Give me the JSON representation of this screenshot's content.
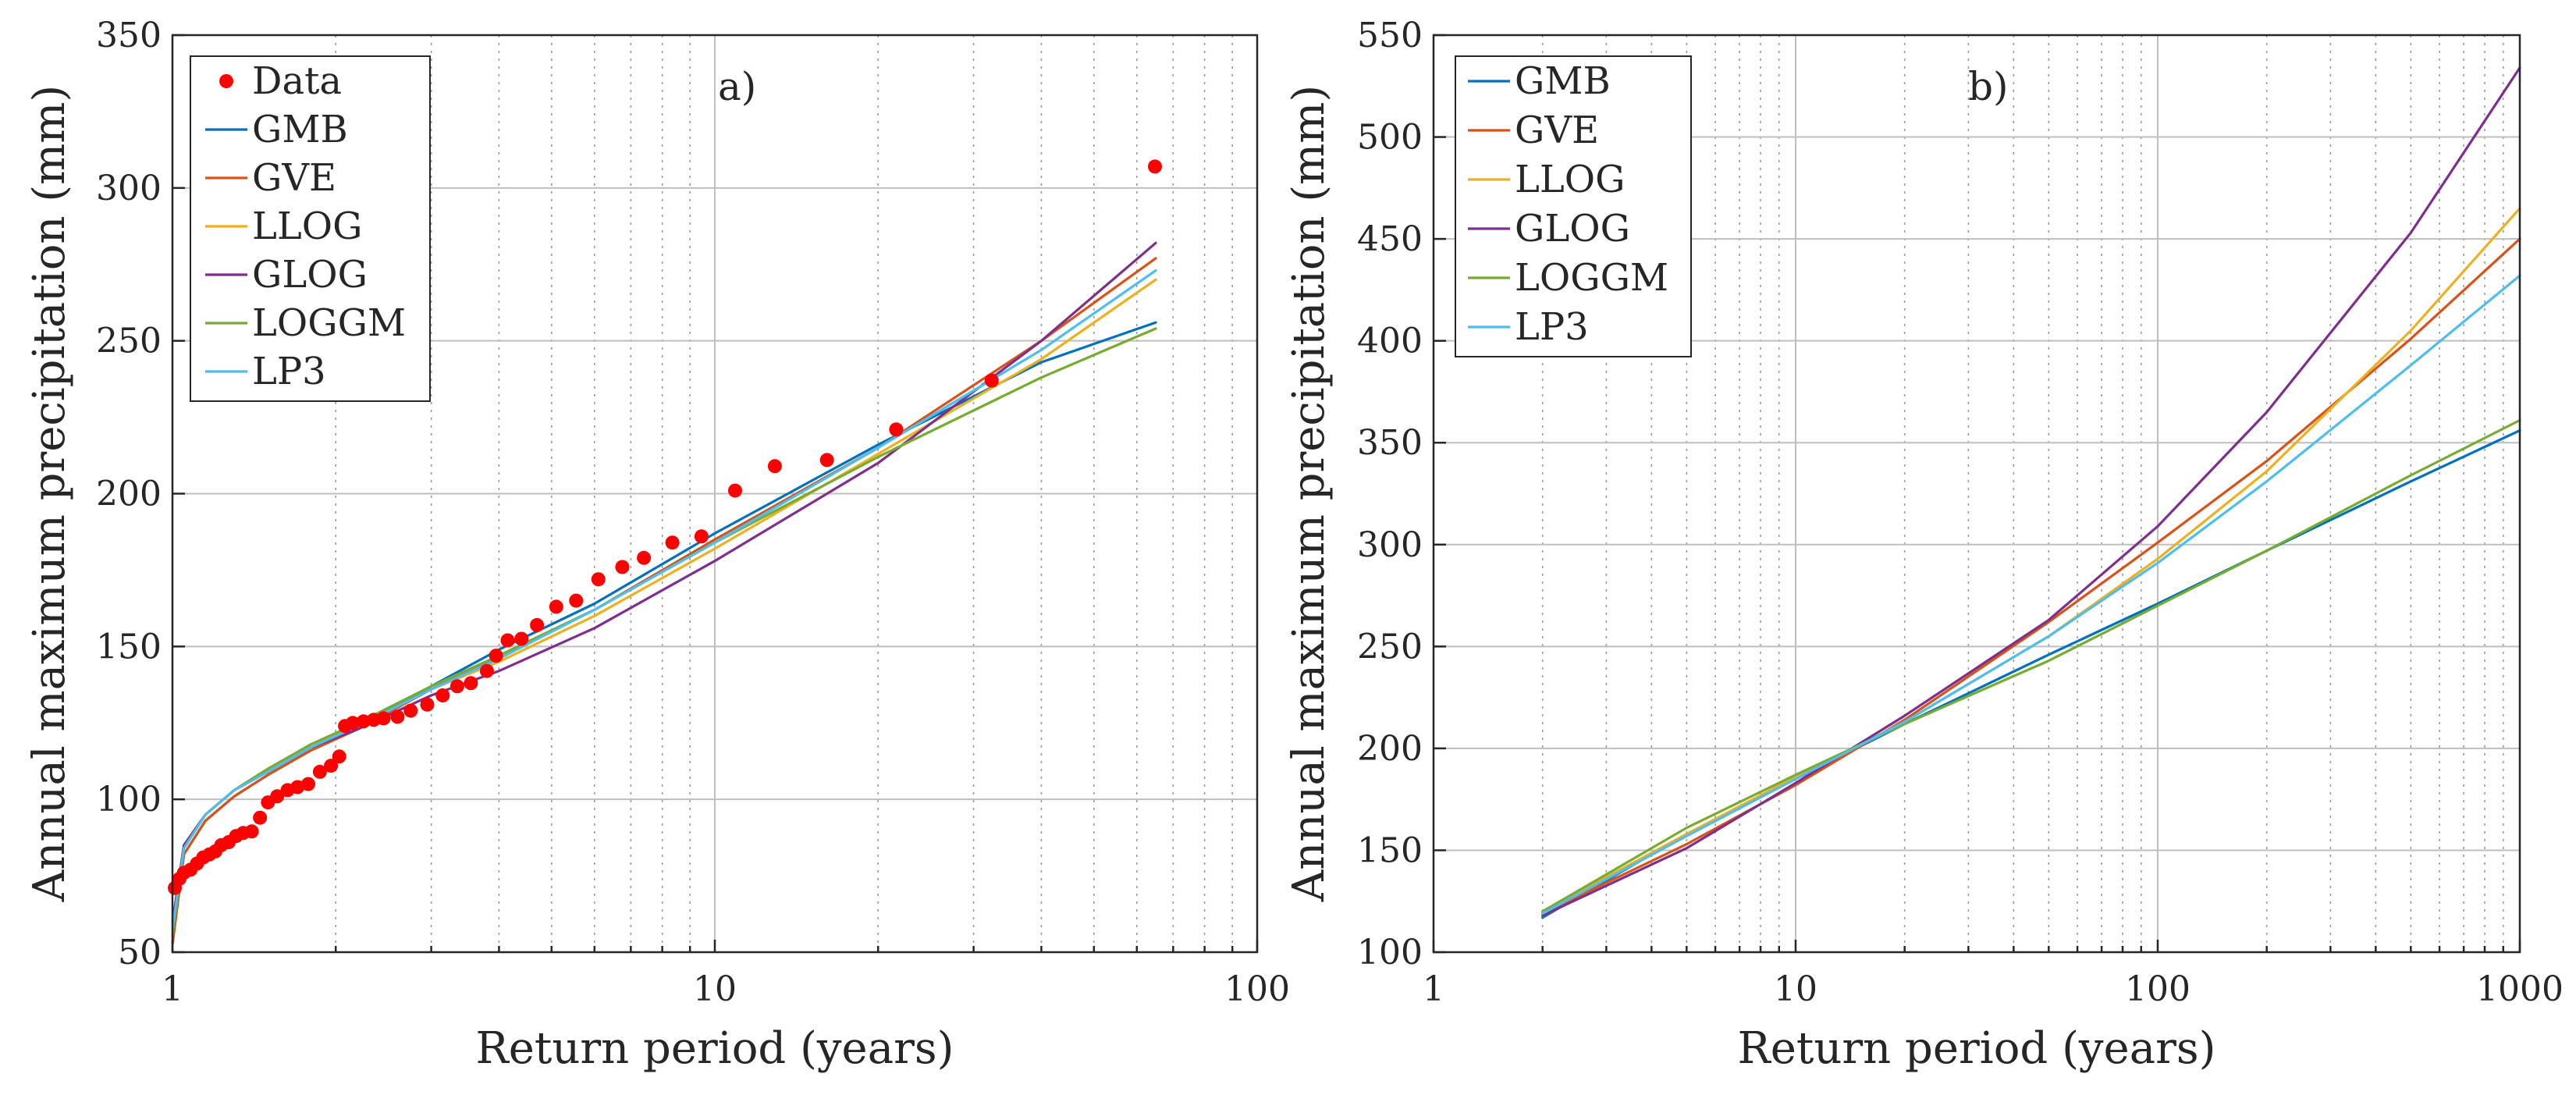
{
  "colors": {
    "GMB": "#0072BD",
    "GVE": "#D95319",
    "LLOG": "#EDB120",
    "GLOG": "#7E2F8E",
    "LOGGM": "#77AC30",
    "LP3": "#4DBEEE",
    "Data": "#FF0000"
  },
  "chart_data": [
    {
      "type": "line",
      "panel_label": "a)",
      "xlabel": "Return period (years)",
      "ylabel": "Annual maximum precipitation (mm)",
      "xscale": "log",
      "xlim": [
        1,
        100
      ],
      "ylim": [
        50,
        350
      ],
      "xticks": [
        1,
        10,
        100
      ],
      "xtick_labels": [
        "1",
        "10",
        "100"
      ],
      "yticks": [
        50,
        100,
        150,
        200,
        250,
        300,
        350
      ],
      "ytick_labels": [
        "50",
        "100",
        "150",
        "200",
        "250",
        "300",
        "350"
      ],
      "grid": "major and minor (x)",
      "legend_position": "top-left",
      "legend": [
        "Data",
        "GMB",
        "GVE",
        "LLOG",
        "GLOG",
        "LOGGM",
        "LP3"
      ],
      "scatter": {
        "name": "Data",
        "points": [
          [
            1.01,
            71
          ],
          [
            1.03,
            74
          ],
          [
            1.05,
            76
          ],
          [
            1.08,
            77
          ],
          [
            1.11,
            79
          ],
          [
            1.14,
            81
          ],
          [
            1.17,
            82
          ],
          [
            1.2,
            83
          ],
          [
            1.23,
            85
          ],
          [
            1.27,
            86
          ],
          [
            1.31,
            88
          ],
          [
            1.35,
            89
          ],
          [
            1.4,
            89.5
          ],
          [
            1.45,
            94
          ],
          [
            1.5,
            99
          ],
          [
            1.56,
            101
          ],
          [
            1.63,
            103
          ],
          [
            1.7,
            104
          ],
          [
            1.78,
            105
          ],
          [
            1.87,
            109
          ],
          [
            1.96,
            111
          ],
          [
            2.03,
            114
          ],
          [
            2.08,
            124
          ],
          [
            2.15,
            125
          ],
          [
            2.25,
            125.5
          ],
          [
            2.35,
            126
          ],
          [
            2.45,
            126.5
          ],
          [
            2.6,
            127
          ],
          [
            2.75,
            129
          ],
          [
            2.95,
            131
          ],
          [
            3.15,
            134
          ],
          [
            3.35,
            137
          ],
          [
            3.55,
            138
          ],
          [
            3.8,
            142
          ],
          [
            3.95,
            147
          ],
          [
            4.15,
            152
          ],
          [
            4.4,
            152.5
          ],
          [
            4.7,
            157
          ],
          [
            5.1,
            163
          ],
          [
            5.55,
            165
          ],
          [
            6.1,
            172
          ],
          [
            6.75,
            176
          ],
          [
            7.4,
            179
          ],
          [
            8.35,
            184
          ],
          [
            9.45,
            186
          ],
          [
            10.9,
            201
          ],
          [
            12.9,
            209
          ],
          [
            16.1,
            211
          ],
          [
            21.6,
            221
          ],
          [
            32.4,
            237
          ],
          [
            64.8,
            307
          ]
        ]
      },
      "series": [
        {
          "name": "GMB",
          "x": [
            1.001,
            1.05,
            1.15,
            1.3,
            1.5,
            1.8,
            2.2,
            3,
            4,
            6,
            10,
            20,
            40,
            65
          ],
          "y": [
            55,
            82,
            93,
            101,
            108,
            116,
            124,
            137,
            149,
            164,
            187,
            216,
            243,
            256
          ]
        },
        {
          "name": "GVE",
          "x": [
            1.001,
            1.05,
            1.15,
            1.3,
            1.5,
            1.8,
            2.2,
            3,
            4,
            6,
            10,
            20,
            40,
            65
          ],
          "y": [
            53,
            82,
            93,
            101,
            108,
            116,
            123,
            136,
            147,
            162,
            185,
            215,
            250,
            277
          ]
        },
        {
          "name": "LLOG",
          "x": [
            1.001,
            1.05,
            1.15,
            1.3,
            1.5,
            1.8,
            2.2,
            3,
            4,
            6,
            10,
            20,
            40,
            65
          ],
          "y": [
            60,
            85,
            95,
            103,
            110,
            118,
            124,
            136,
            145,
            160,
            182,
            213,
            244,
            270
          ]
        },
        {
          "name": "GLOG",
          "x": [
            1.001,
            1.05,
            1.15,
            1.3,
            1.5,
            1.8,
            2.2,
            3,
            4,
            6,
            10,
            20,
            40,
            65
          ],
          "y": [
            60,
            85,
            95,
            103,
            109,
            117,
            123,
            134,
            142,
            156,
            178,
            210,
            250,
            282
          ]
        },
        {
          "name": "LOGGM",
          "x": [
            1.001,
            1.05,
            1.15,
            1.3,
            1.5,
            1.8,
            2.2,
            3,
            4,
            6,
            10,
            20,
            40,
            65
          ],
          "y": [
            56,
            84,
            95,
            103,
            110,
            118,
            125,
            137,
            147,
            162,
            184,
            212,
            238,
            254
          ]
        },
        {
          "name": "LP3",
          "x": [
            1.001,
            1.05,
            1.15,
            1.3,
            1.5,
            1.8,
            2.2,
            3,
            4,
            6,
            10,
            20,
            40,
            65
          ],
          "y": [
            58,
            84,
            95,
            103,
            109,
            117,
            124,
            136,
            146,
            162,
            184,
            215,
            247,
            273
          ]
        }
      ]
    },
    {
      "type": "line",
      "panel_label": "b)",
      "xlabel": "Return period (years)",
      "ylabel": "Annual maximum precipitation (mm)",
      "xscale": "log",
      "xlim": [
        1,
        1000
      ],
      "ylim": [
        100,
        550
      ],
      "xticks": [
        1,
        10,
        100,
        1000
      ],
      "xtick_labels": [
        "1",
        "10",
        "100",
        "1000"
      ],
      "yticks": [
        100,
        150,
        200,
        250,
        300,
        350,
        400,
        450,
        500,
        550
      ],
      "ytick_labels": [
        "100",
        "150",
        "200",
        "250",
        "300",
        "350",
        "400",
        "450",
        "500",
        "550"
      ],
      "grid": "major and minor (x)",
      "legend_position": "top-left",
      "legend": [
        "GMB",
        "GVE",
        "LLOG",
        "GLOG",
        "LOGGM",
        "LP3"
      ],
      "series": [
        {
          "name": "GMB",
          "x": [
            2,
            5,
            10,
            20,
            50,
            100,
            200,
            500,
            1000
          ],
          "y": [
            117,
            158,
            185,
            212,
            246,
            271,
            297,
            331,
            356
          ]
        },
        {
          "name": "GVE",
          "x": [
            2,
            5,
            10,
            20,
            50,
            100,
            200,
            500,
            1000
          ],
          "y": [
            119,
            153,
            182,
            214,
            262,
            301,
            341,
            401,
            450
          ]
        },
        {
          "name": "LLOG",
          "x": [
            2,
            5,
            10,
            20,
            50,
            100,
            200,
            500,
            1000
          ],
          "y": [
            120,
            158,
            186,
            213,
            255,
            293,
            336,
            405,
            465
          ]
        },
        {
          "name": "GLOG",
          "x": [
            2,
            5,
            10,
            20,
            50,
            100,
            200,
            500,
            1000
          ],
          "y": [
            118,
            151,
            183,
            216,
            263,
            309,
            365,
            453,
            534
          ]
        },
        {
          "name": "LOGGM",
          "x": [
            2,
            5,
            10,
            20,
            50,
            100,
            200,
            500,
            1000
          ],
          "y": [
            120,
            161,
            187,
            212,
            243,
            270,
            297,
            334,
            361
          ]
        },
        {
          "name": "LP3",
          "x": [
            2,
            5,
            10,
            20,
            50,
            100,
            200,
            500,
            1000
          ],
          "y": [
            119,
            157,
            185,
            213,
            255,
            291,
            331,
            388,
            432
          ]
        }
      ]
    }
  ]
}
